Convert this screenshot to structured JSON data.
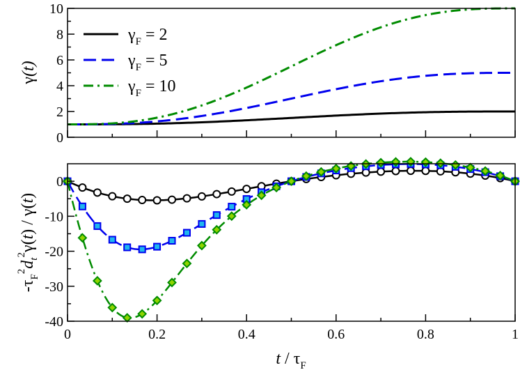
{
  "chart_data": [
    {
      "type": "line",
      "panel": "top",
      "ylabel_main": "γ",
      "ylabel_arg": "(t)",
      "xlim": [
        0,
        1
      ],
      "ylim": [
        0,
        10
      ],
      "yticks": [
        0,
        2,
        4,
        6,
        8,
        10
      ],
      "ytick_labels": [
        "0",
        "2",
        "4",
        "6",
        "8",
        "10"
      ],
      "legend_position": "top-left",
      "series": [
        {
          "name": "γF = 2",
          "legend_main": "γ",
          "legend_sub": "F",
          "legend_rest": " = 2",
          "gammaF": 2,
          "color": "#000000",
          "style": "solid"
        },
        {
          "name": "γF = 5",
          "legend_main": "γ",
          "legend_sub": "F",
          "legend_rest": " = 5",
          "gammaF": 5,
          "color": "#0000ee",
          "style": "dashed"
        },
        {
          "name": "γF = 10",
          "legend_main": "γ",
          "legend_sub": "F",
          "legend_rest": " = 10",
          "gammaF": 10,
          "color": "#008b00",
          "style": "dashdot"
        }
      ]
    },
    {
      "type": "line",
      "panel": "bottom",
      "ylabel": "-τF² dt² γ(t) / γ(t)",
      "xlabel": "t / τF",
      "xlim": [
        0,
        1
      ],
      "ylim": [
        -40,
        5
      ],
      "xticks": [
        0,
        0.2,
        0.4,
        0.6,
        0.8,
        1
      ],
      "xtick_labels": [
        "0",
        "0.2",
        "0.4",
        "0.6",
        "0.8",
        "1"
      ],
      "yticks": [
        -40,
        -30,
        -20,
        -10,
        0
      ],
      "ytick_labels": [
        "-40",
        "-30",
        "-20",
        "-10",
        "0"
      ],
      "marker_x": [
        0,
        0.0333,
        0.0667,
        0.1,
        0.1333,
        0.1667,
        0.2,
        0.2333,
        0.2667,
        0.3,
        0.3333,
        0.3667,
        0.4,
        0.4333,
        0.4667,
        0.5,
        0.5333,
        0.5667,
        0.6,
        0.6333,
        0.6667,
        0.7,
        0.7333,
        0.7667,
        0.8,
        0.8333,
        0.8667,
        0.9,
        0.9333,
        0.9667,
        1
      ],
      "series": [
        {
          "name": "γF = 2",
          "gammaF": 2,
          "color": "#000000",
          "style": "solid",
          "marker": "circle",
          "marker_fill": "#ffffff"
        },
        {
          "name": "γF = 5",
          "gammaF": 5,
          "color": "#0000ee",
          "style": "dashed",
          "marker": "square",
          "marker_fill": "#1fb6ee"
        },
        {
          "name": "γF = 10",
          "gammaF": 10,
          "color": "#008b00",
          "style": "dashdot",
          "marker": "diamond",
          "marker_fill": "#8fd400"
        }
      ]
    }
  ]
}
